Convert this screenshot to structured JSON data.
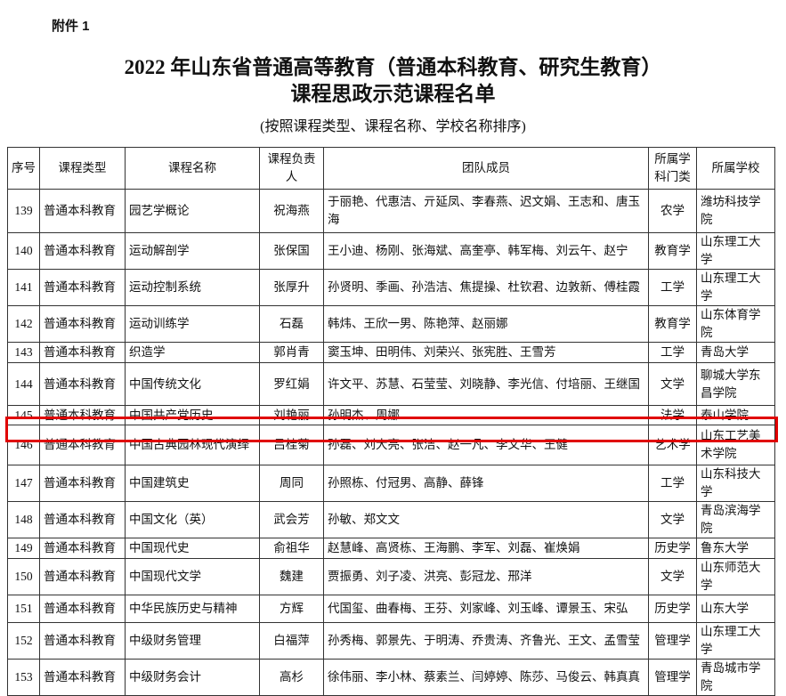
{
  "header": {
    "annex": "附件 1",
    "title_line1": "2022 年山东省普通高等教育（普通本科教育、研究生教育）",
    "title_line2": "课程思政示范课程名单",
    "subtitle": "(按照课程类型、课程名称、学校名称排序)"
  },
  "table": {
    "columns": [
      "序号",
      "课程类型",
      "课程名称",
      "课程负责人",
      "团队成员",
      "所属学科门类",
      "所属学校"
    ],
    "rows": [
      {
        "no": "139",
        "type": "普通本科教育",
        "name": "园艺学概论",
        "leader": "祝海燕",
        "members": "于丽艳、代惠洁、亓延凤、李春燕、迟文娟、王志和、唐玉海",
        "discipline": "农学",
        "school": "潍坊科技学院"
      },
      {
        "no": "140",
        "type": "普通本科教育",
        "name": "运动解剖学",
        "leader": "张保国",
        "members": "王小迪、杨刚、张海斌、高奎亭、韩军梅、刘云午、赵宁",
        "discipline": "教育学",
        "school": "山东理工大学"
      },
      {
        "no": "141",
        "type": "普通本科教育",
        "name": "运动控制系统",
        "leader": "张厚升",
        "members": "孙贤明、季画、孙浩洁、焦提操、杜钦君、边敦新、傅桂霞",
        "discipline": "工学",
        "school": "山东理工大学"
      },
      {
        "no": "142",
        "type": "普通本科教育",
        "name": "运动训练学",
        "leader": "石磊",
        "members": "韩炜、王欣一男、陈艳萍、赵丽娜",
        "discipline": "教育学",
        "school": "山东体育学院"
      },
      {
        "no": "143",
        "type": "普通本科教育",
        "name": "织造学",
        "leader": "郭肖青",
        "members": "窦玉坤、田明伟、刘荣兴、张宪胜、王雪芳",
        "discipline": "工学",
        "school": "青岛大学"
      },
      {
        "no": "144",
        "type": "普通本科教育",
        "name": "中国传统文化",
        "leader": "罗红娟",
        "members": "许文平、苏慧、石莹莹、刘晓静、李光信、付培丽、王继国",
        "discipline": "文学",
        "school": "聊城大学东昌学院"
      },
      {
        "no": "145",
        "type": "普通本科教育",
        "name": "中国共产党历史",
        "leader": "刘艳丽",
        "members": "孙明杰、周娜",
        "discipline": "法学",
        "school": "泰山学院"
      },
      {
        "no": "146",
        "type": "普通本科教育",
        "name": "中国古典园林现代演绎",
        "leader": "吕桂菊",
        "members": "孙磊、刘大亮、张洁、赵一凡、李文华、王健",
        "discipline": "艺术学",
        "school": "山东工艺美术学院"
      },
      {
        "no": "147",
        "type": "普通本科教育",
        "name": "中国建筑史",
        "leader": "周同",
        "members": "孙照栋、付冠男、高静、薛锋",
        "discipline": "工学",
        "school": "山东科技大学"
      },
      {
        "no": "148",
        "type": "普通本科教育",
        "name": "中国文化（英）",
        "leader": "武会芳",
        "members": "孙敏、郑文文",
        "discipline": "文学",
        "school": "青岛滨海学院"
      },
      {
        "no": "149",
        "type": "普通本科教育",
        "name": "中国现代史",
        "leader": "俞祖华",
        "members": "赵慧峰、高贤栋、王海鹏、李军、刘磊、崔焕娟",
        "discipline": "历史学",
        "school": "鲁东大学"
      },
      {
        "no": "150",
        "type": "普通本科教育",
        "name": "中国现代文学",
        "leader": "魏建",
        "members": "贾振勇、刘子凌、洪亮、彭冠龙、邢洋",
        "discipline": "文学",
        "school": "山东师范大学"
      },
      {
        "no": "151",
        "type": "普通本科教育",
        "name": "中华民族历史与精神",
        "leader": "方辉",
        "members": "代国玺、曲春梅、王芬、刘家峰、刘玉峰、谭景玉、宋弘",
        "discipline": "历史学",
        "school": "山东大学"
      },
      {
        "no": "152",
        "type": "普通本科教育",
        "name": "中级财务管理",
        "leader": "白福萍",
        "members": "孙秀梅、郭景先、于明涛、乔贵涛、齐鲁光、王文、孟雪莹",
        "discipline": "管理学",
        "school": "山东理工大学"
      },
      {
        "no": "153",
        "type": "普通本科教育",
        "name": "中级财务会计",
        "leader": "高杉",
        "members": "徐伟丽、李小林、蔡素兰、闫婷婷、陈莎、马俊云、韩真真",
        "discipline": "管理学",
        "school": "青岛城市学院"
      }
    ],
    "highlighted_row": "147",
    "highlight_color": "#e00000"
  }
}
